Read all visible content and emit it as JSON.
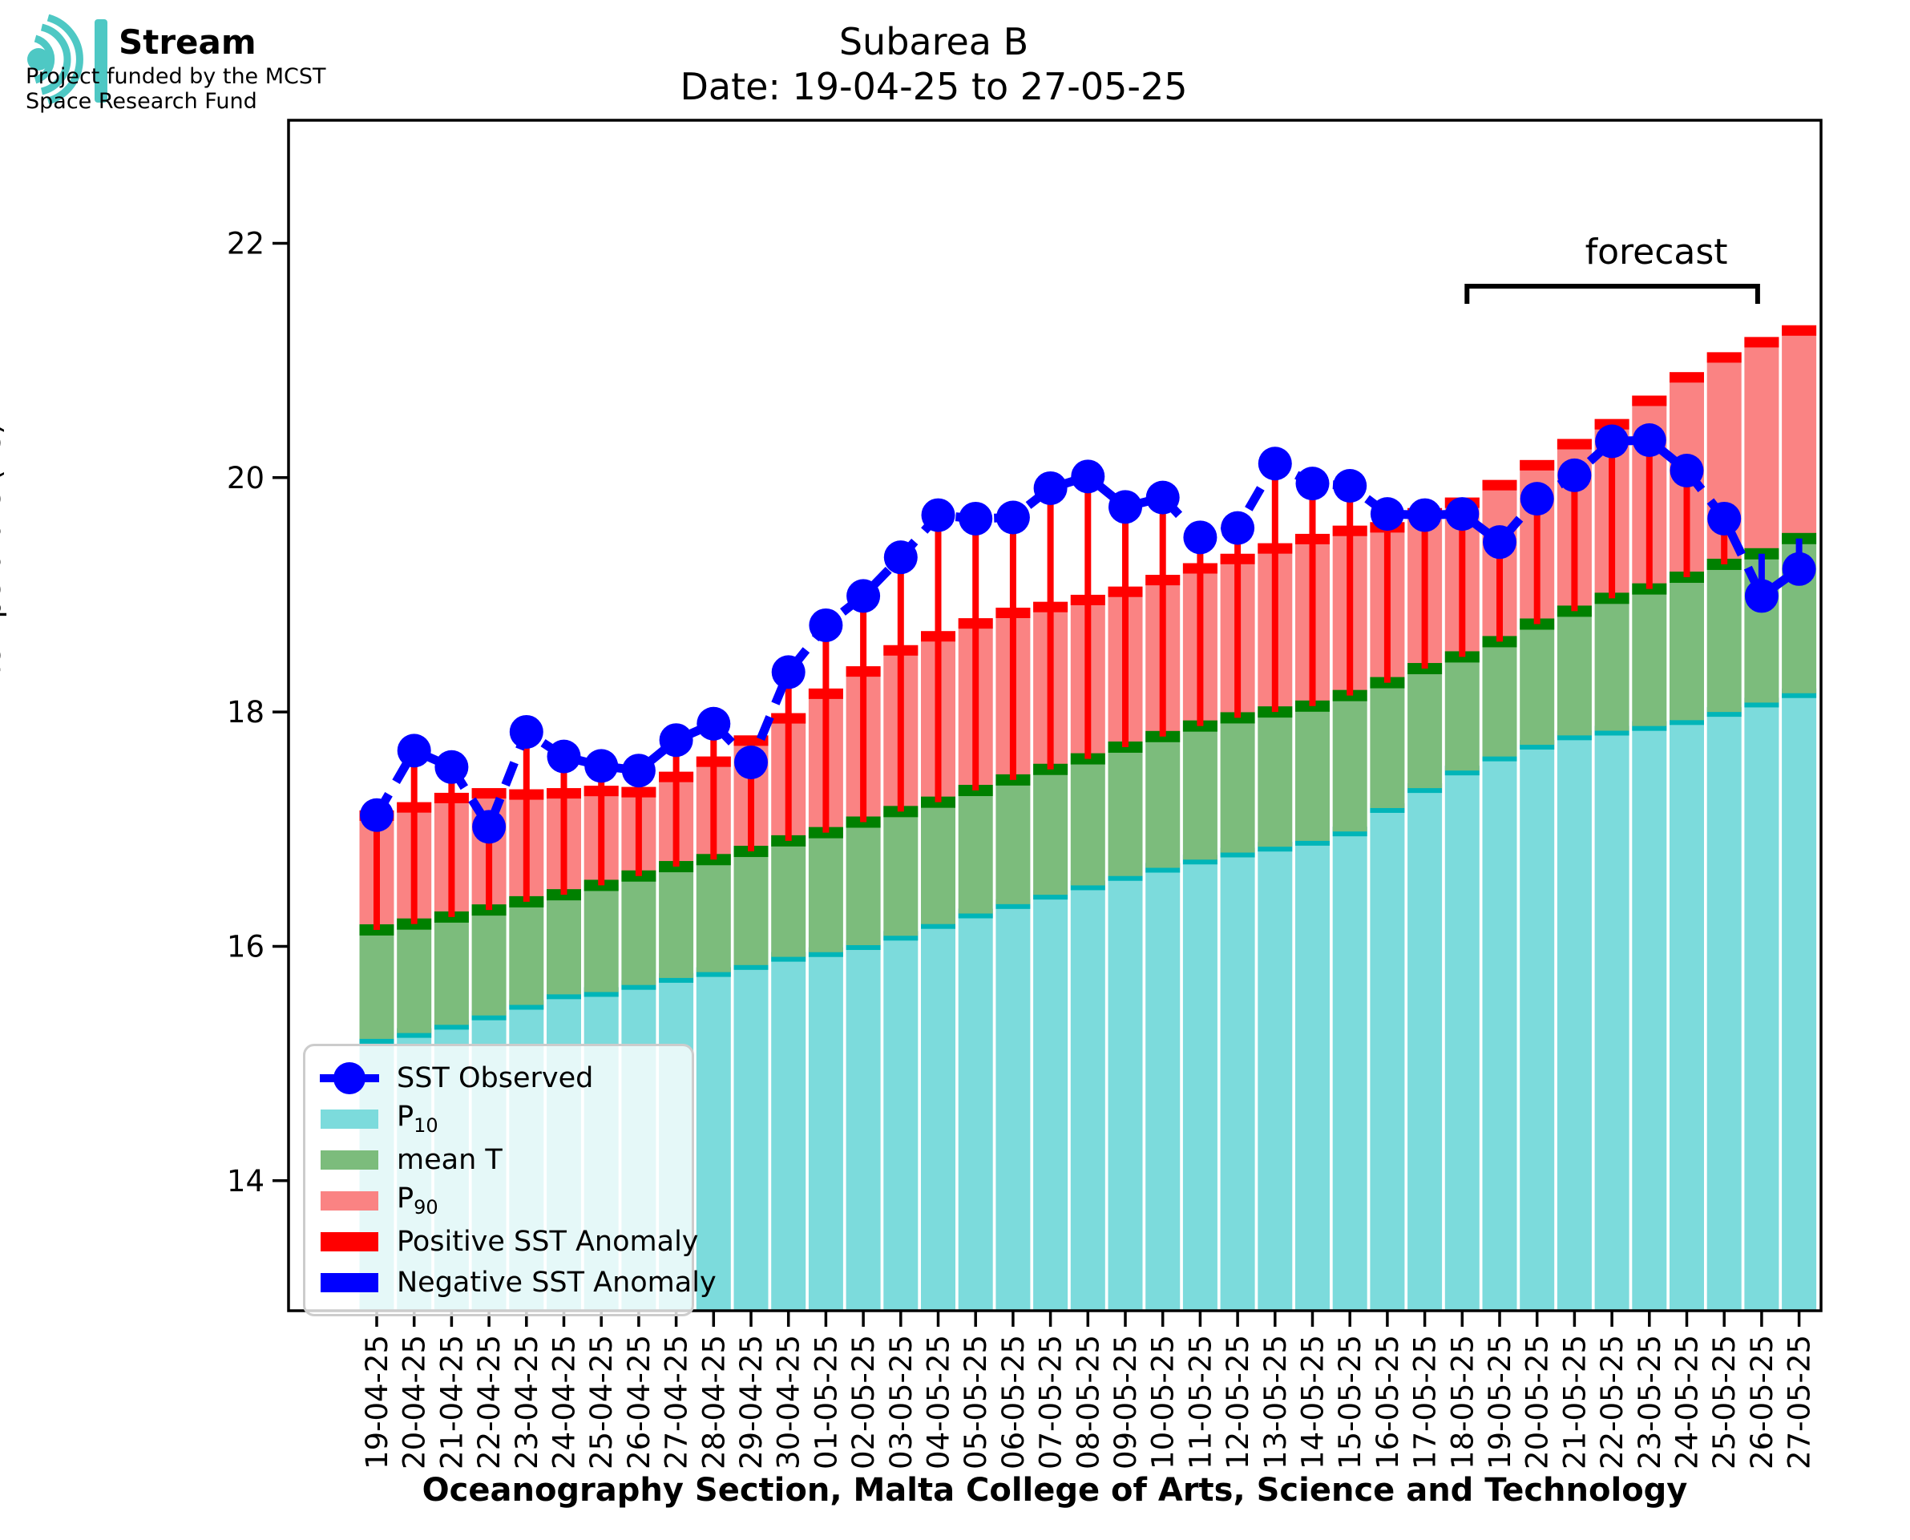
{
  "logo": {
    "brand": "Stream",
    "subtitle": "Project funded by the MCST\nSpace Research Fund",
    "color": "#4EC8C4"
  },
  "title": "Subarea B",
  "subtitle": "Date: 19-04-25 to 27-05-25",
  "legend": {
    "items": [
      {
        "label": "SST Observed",
        "marker": "dot-line",
        "color": "#0000FF"
      },
      {
        "label_pre": "P",
        "label_sub": "10",
        "marker": "patch",
        "color": "#7CDBDC"
      },
      {
        "label": "mean T",
        "marker": "patch",
        "color": "#7CBC7C"
      },
      {
        "label_pre": "P",
        "label_sub": "90",
        "marker": "patch",
        "color": "#FA8383"
      },
      {
        "label": "Positive SST Anomaly",
        "marker": "patch",
        "color": "#FF0000"
      },
      {
        "label": "Negative SST Anomaly",
        "marker": "patch",
        "color": "#0000FF"
      }
    ]
  },
  "chart_data": {
    "type": "bar",
    "title": "Subarea B",
    "xlabel": "Oceanography Section, Malta College of Arts, Science and Technology",
    "ylabel": "Temperature (°C)",
    "ylim": [
      12.89,
      23.05
    ],
    "yticks": [
      14,
      16,
      18,
      20,
      22
    ],
    "grid": false,
    "legend_position": "lower-left",
    "forecast": {
      "label": "forecast",
      "start_index": 29,
      "end_index": 37
    },
    "categories": [
      "19-04-25",
      "20-04-25",
      "21-04-25",
      "22-04-25",
      "23-04-25",
      "24-04-25",
      "25-04-25",
      "26-04-25",
      "27-04-25",
      "28-04-25",
      "29-04-25",
      "30-04-25",
      "01-05-25",
      "02-05-25",
      "03-05-25",
      "04-05-25",
      "05-05-25",
      "06-05-25",
      "07-05-25",
      "08-05-25",
      "09-05-25",
      "10-05-25",
      "11-05-25",
      "12-05-25",
      "13-05-25",
      "14-05-25",
      "15-05-25",
      "16-05-25",
      "17-05-25",
      "18-05-25",
      "19-05-25",
      "20-05-25",
      "21-05-25",
      "22-05-25",
      "23-05-25",
      "24-05-25",
      "25-05-25",
      "26-05-25",
      "27-05-25"
    ],
    "series": [
      {
        "name": "P10",
        "color": "#7CDBDC",
        "cap_color": "#00B5B8",
        "values": [
          15.21,
          15.26,
          15.33,
          15.41,
          15.5,
          15.59,
          15.61,
          15.67,
          15.73,
          15.78,
          15.84,
          15.91,
          15.95,
          16.01,
          16.09,
          16.19,
          16.28,
          16.36,
          16.44,
          16.52,
          16.6,
          16.67,
          16.74,
          16.8,
          16.85,
          16.9,
          16.98,
          17.18,
          17.35,
          17.5,
          17.62,
          17.72,
          17.8,
          17.84,
          17.88,
          17.93,
          18.0,
          18.08,
          18.16
        ]
      },
      {
        "name": "mean T",
        "color": "#7CBC7C",
        "cap_color": "#008000",
        "values": [
          16.14,
          16.19,
          16.25,
          16.31,
          16.38,
          16.44,
          16.52,
          16.6,
          16.68,
          16.74,
          16.81,
          16.9,
          16.97,
          17.06,
          17.15,
          17.23,
          17.33,
          17.42,
          17.51,
          17.6,
          17.7,
          17.79,
          17.88,
          17.95,
          18.0,
          18.05,
          18.14,
          18.25,
          18.37,
          18.47,
          18.6,
          18.75,
          18.86,
          18.97,
          19.05,
          19.15,
          19.26,
          19.35,
          19.48
        ]
      },
      {
        "name": "P90",
        "color": "#FA8383",
        "cap_color": "#FF0000",
        "values": [
          17.16,
          17.23,
          17.31,
          17.35,
          17.34,
          17.35,
          17.37,
          17.36,
          17.49,
          17.62,
          17.8,
          17.99,
          18.2,
          18.39,
          18.57,
          18.69,
          18.8,
          18.89,
          18.94,
          19.0,
          19.07,
          19.17,
          19.27,
          19.35,
          19.44,
          19.52,
          19.59,
          19.62,
          19.74,
          19.83,
          19.98,
          20.15,
          20.33,
          20.5,
          20.7,
          20.9,
          21.07,
          21.2,
          21.3
        ]
      },
      {
        "name": "SST Observed",
        "color": "#0000FF",
        "values": [
          17.12,
          17.67,
          17.53,
          17.02,
          17.83,
          17.62,
          17.54,
          17.5,
          17.76,
          17.9,
          17.57,
          18.34,
          18.74,
          18.99,
          19.32,
          19.68,
          19.65,
          19.66,
          19.91,
          20.01,
          19.75,
          19.83,
          19.49,
          19.57,
          20.12,
          19.95,
          19.93,
          19.69,
          19.68,
          19.69,
          19.45,
          19.82,
          20.02,
          20.31,
          20.32,
          20.06,
          19.65,
          18.99,
          19.22
        ]
      }
    ],
    "anomaly": {
      "positive_color": "#FF0000",
      "negative_color": "#0000FF"
    }
  }
}
